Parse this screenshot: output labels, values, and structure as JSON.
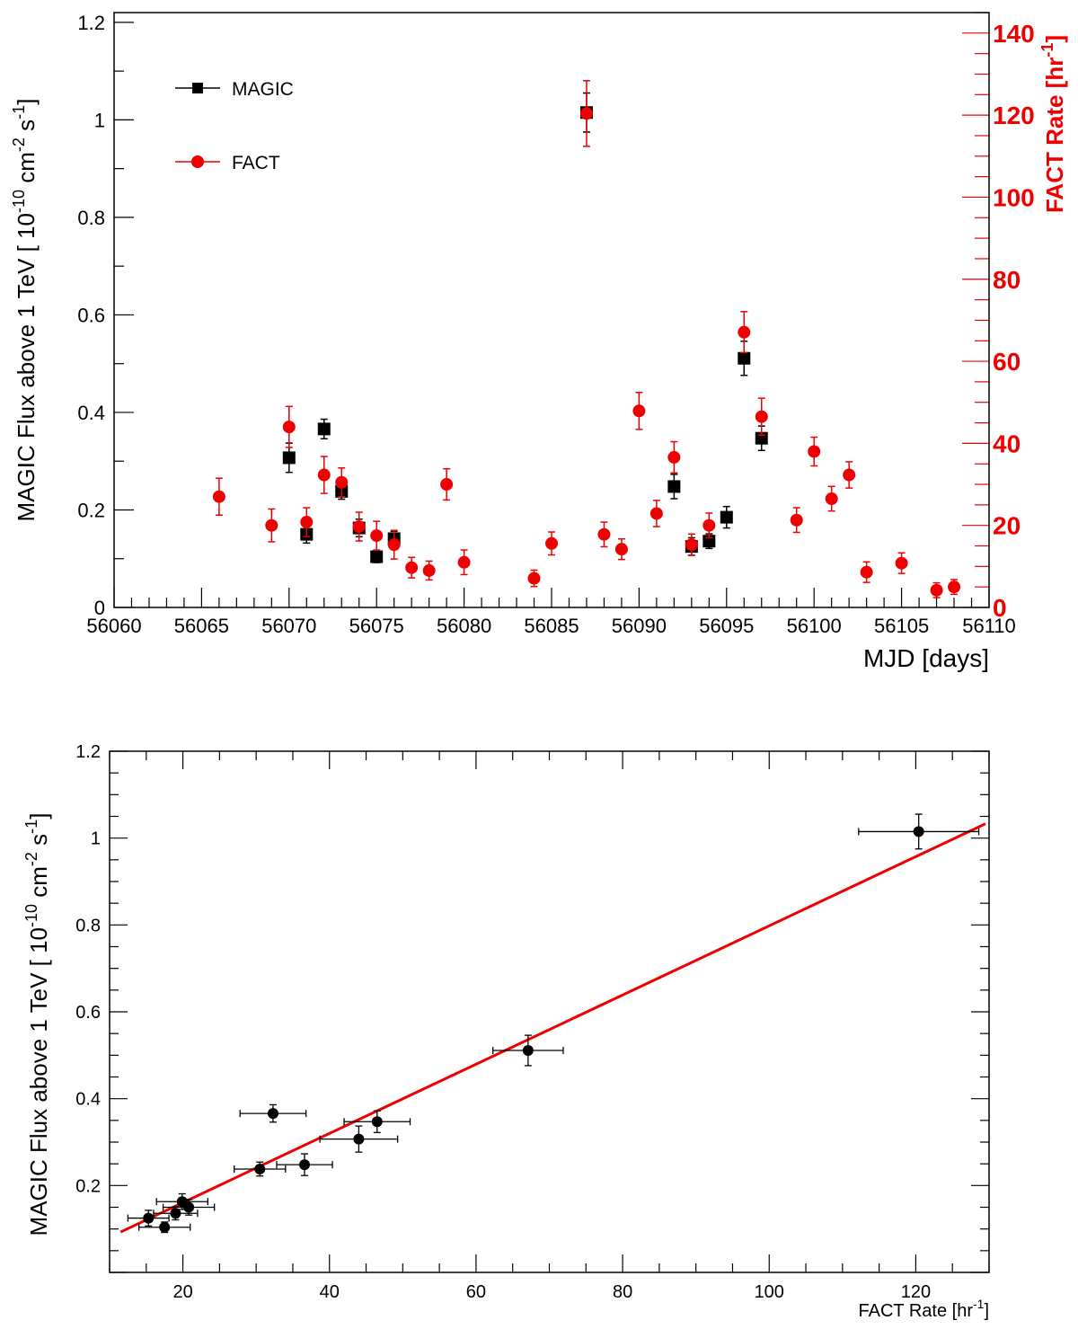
{
  "chart_data": [
    {
      "type": "scatter",
      "xlabel": "MJD [days]",
      "ylabel": "MAGIC Flux above 1 TeV [ 10^{-10} cm^{-2} s^{-1}]",
      "ylabel_right": "FACT Rate [hr^{-1}]",
      "xlim": [
        56060,
        56110
      ],
      "ylim": [
        0,
        1.22
      ],
      "ylim_right": [
        0,
        145
      ],
      "x_ticks": [
        56060,
        56065,
        56070,
        56075,
        56080,
        56085,
        56090,
        56095,
        56100,
        56105,
        56110
      ],
      "y_ticks": [
        0,
        0.2,
        0.4,
        0.6,
        0.8,
        1,
        1.2
      ],
      "y_tick_labels": [
        "0",
        "0.2",
        "0.4",
        "0.6",
        "0.8",
        "1",
        "1.2"
      ],
      "y_right_ticks": [
        0,
        20,
        40,
        60,
        80,
        100,
        120,
        140
      ],
      "legend_placement": "top-left",
      "series": [
        {
          "name": "MAGIC",
          "marker": "square",
          "color": "#000000",
          "axis": "left",
          "points": [
            {
              "x": 56070,
              "y": 0.307,
              "err": 0.03
            },
            {
              "x": 56071,
              "y": 0.15,
              "err": 0.018
            },
            {
              "x": 56072,
              "y": 0.366,
              "err": 0.02
            },
            {
              "x": 56073,
              "y": 0.238,
              "err": 0.016
            },
            {
              "x": 56074,
              "y": 0.163,
              "err": 0.018
            },
            {
              "x": 56075,
              "y": 0.104,
              "err": 0.012
            },
            {
              "x": 56076,
              "y": 0.141,
              "err": 0.015
            },
            {
              "x": 56087,
              "y": 1.015,
              "err": 0.04
            },
            {
              "x": 56092,
              "y": 0.248,
              "err": 0.025
            },
            {
              "x": 56093,
              "y": 0.125,
              "err": 0.018
            },
            {
              "x": 56094,
              "y": 0.136,
              "err": 0.015
            },
            {
              "x": 56095,
              "y": 0.185,
              "err": 0.022
            },
            {
              "x": 56096,
              "y": 0.511,
              "err": 0.035
            },
            {
              "x": 56097,
              "y": 0.347,
              "err": 0.025
            }
          ]
        },
        {
          "name": "FACT",
          "marker": "circle",
          "color": "#ee0000",
          "axis": "right",
          "points": [
            {
              "x": 56066,
              "y": 27.0,
              "err": 4.5
            },
            {
              "x": 56069,
              "y": 20.0,
              "err": 4.0
            },
            {
              "x": 56070,
              "y": 44.0,
              "err": 5.0
            },
            {
              "x": 56071,
              "y": 20.8,
              "err": 3.5
            },
            {
              "x": 56072,
              "y": 32.3,
              "err": 4.5
            },
            {
              "x": 56073,
              "y": 30.5,
              "err": 3.5
            },
            {
              "x": 56074,
              "y": 19.7,
              "err": 3.5
            },
            {
              "x": 56075,
              "y": 17.5,
              "err": 3.5
            },
            {
              "x": 56076,
              "y": 15.3,
              "err": 3.5
            },
            {
              "x": 56077,
              "y": 9.7,
              "err": 2.5
            },
            {
              "x": 56078,
              "y": 9.0,
              "err": 2.3
            },
            {
              "x": 56079,
              "y": 30.0,
              "err": 3.8
            },
            {
              "x": 56080,
              "y": 11.0,
              "err": 3.0
            },
            {
              "x": 56084,
              "y": 7.1,
              "err": 2.0
            },
            {
              "x": 56085,
              "y": 15.6,
              "err": 2.8
            },
            {
              "x": 56088,
              "y": 17.8,
              "err": 3.0
            },
            {
              "x": 56087,
              "y": 120.4,
              "err": 8.0
            },
            {
              "x": 56089,
              "y": 14.2,
              "err": 2.5
            },
            {
              "x": 56090,
              "y": 47.9,
              "err": 4.5
            },
            {
              "x": 56091,
              "y": 22.9,
              "err": 3.2
            },
            {
              "x": 56092,
              "y": 36.6,
              "err": 3.8
            },
            {
              "x": 56093,
              "y": 15.3,
              "err": 2.6
            },
            {
              "x": 56094,
              "y": 20.0,
              "err": 3.0
            },
            {
              "x": 56096,
              "y": 67.1,
              "err": 5.0
            },
            {
              "x": 56097,
              "y": 46.5,
              "err": 4.5
            },
            {
              "x": 56099,
              "y": 21.3,
              "err": 3.0
            },
            {
              "x": 56100,
              "y": 38.0,
              "err": 3.5
            },
            {
              "x": 56101,
              "y": 26.5,
              "err": 3.0
            },
            {
              "x": 56102,
              "y": 32.3,
              "err": 3.2
            },
            {
              "x": 56103,
              "y": 8.6,
              "err": 2.5
            },
            {
              "x": 56105,
              "y": 10.8,
              "err": 2.5
            },
            {
              "x": 56107,
              "y": 4.2,
              "err": 1.8
            },
            {
              "x": 56108,
              "y": 5.0,
              "err": 1.8
            }
          ]
        }
      ]
    },
    {
      "type": "scatter",
      "xlabel": "FACT Rate [hr^{-1}]",
      "ylabel": "MAGIC Flux above 1 TeV [ 10^{-10} cm^{-2} s^{-1}]",
      "xlim": [
        10,
        130
      ],
      "ylim": [
        0.0,
        1.2
      ],
      "x_ticks": [
        20,
        40,
        60,
        80,
        100,
        120
      ],
      "y_ticks": [
        0.2,
        0.4,
        0.6,
        0.8,
        1,
        1.2
      ],
      "y_tick_labels": [
        "0.2",
        "0.4",
        "0.6",
        "0.8",
        "1",
        "1.2"
      ],
      "series": [
        {
          "marker": "circle",
          "color": "#000000",
          "points": [
            {
              "x": 44.0,
              "y": 0.307,
              "xerr": 5.3,
              "yerr": 0.03
            },
            {
              "x": 20.8,
              "y": 0.15,
              "xerr": 3.5,
              "yerr": 0.018
            },
            {
              "x": 32.3,
              "y": 0.366,
              "xerr": 4.5,
              "yerr": 0.02
            },
            {
              "x": 30.5,
              "y": 0.238,
              "xerr": 3.5,
              "yerr": 0.016
            },
            {
              "x": 19.9,
              "y": 0.163,
              "xerr": 3.5,
              "yerr": 0.018
            },
            {
              "x": 17.5,
              "y": 0.104,
              "xerr": 3.5,
              "yerr": 0.012
            },
            {
              "x": 15.3,
              "y": 0.125,
              "xerr": 2.8,
              "yerr": 0.018
            },
            {
              "x": 19.0,
              "y": 0.136,
              "xerr": 3.0,
              "yerr": 0.015
            },
            {
              "x": 120.4,
              "y": 1.015,
              "xerr": 8.2,
              "yerr": 0.04
            },
            {
              "x": 36.6,
              "y": 0.248,
              "xerr": 3.8,
              "yerr": 0.025
            },
            {
              "x": 67.1,
              "y": 0.511,
              "xerr": 4.8,
              "yerr": 0.035
            },
            {
              "x": 46.5,
              "y": 0.347,
              "xerr": 4.5,
              "yerr": 0.025
            }
          ]
        },
        {
          "type": "line",
          "color": "#ee0000",
          "x": [
            11.5,
            129.5
          ],
          "y": [
            0.093,
            1.033
          ]
        }
      ]
    }
  ]
}
